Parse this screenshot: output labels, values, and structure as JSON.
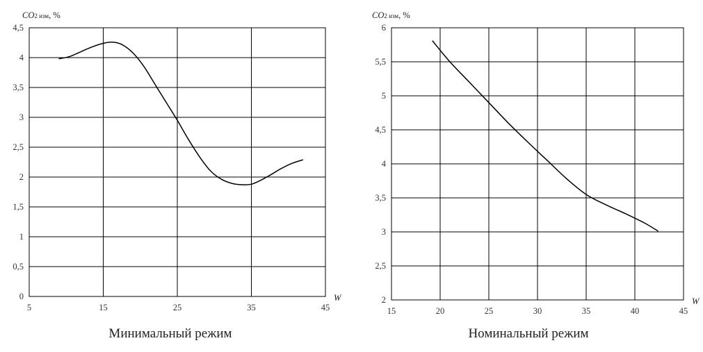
{
  "chart_data": [
    {
      "type": "line",
      "title": "Минимальный режим",
      "ylabel": {
        "main": "CO",
        "sub": "2 изм",
        "unit": ", %"
      },
      "xlabel": "W",
      "xlim": [
        5,
        45
      ],
      "ylim": [
        0,
        4.5
      ],
      "xticks": [
        "5",
        "15",
        "25",
        "35",
        "45"
      ],
      "yticks": [
        "0",
        "0,5",
        "1",
        "1,5",
        "2",
        "2,5",
        "3",
        "3,5",
        "4",
        "4,5"
      ],
      "series": [
        {
          "x": [
            9,
            10.5,
            12,
            13.5,
            15,
            16.2,
            17.5,
            19,
            20.5,
            22,
            23.5,
            25,
            26.5,
            28,
            29.5,
            31,
            32.5,
            34,
            35,
            36,
            37.5,
            39,
            40.5,
            42
          ],
          "values": [
            3.98,
            4.02,
            4.1,
            4.18,
            4.24,
            4.26,
            4.22,
            4.08,
            3.85,
            3.55,
            3.25,
            2.95,
            2.63,
            2.34,
            2.1,
            1.96,
            1.89,
            1.87,
            1.88,
            1.93,
            2.03,
            2.14,
            2.23,
            2.29
          ]
        }
      ]
    },
    {
      "type": "line",
      "title": "Номинальный режим",
      "ylabel": {
        "main": "CO",
        "sub": "2 изм",
        "unit": ", %"
      },
      "xlabel": "W",
      "xlim": [
        15,
        45
      ],
      "ylim": [
        2,
        6
      ],
      "xticks": [
        "15",
        "20",
        "25",
        "30",
        "35",
        "40",
        "45"
      ],
      "yticks": [
        "2",
        "2,5",
        "3",
        "3,5",
        "4",
        "4,5",
        "5",
        "5,5",
        "6"
      ],
      "series": [
        {
          "x": [
            19.2,
            21,
            23,
            25,
            27,
            29,
            31,
            33,
            35,
            37,
            39,
            41,
            42.4
          ],
          "values": [
            5.81,
            5.5,
            5.2,
            4.9,
            4.6,
            4.32,
            4.05,
            3.78,
            3.55,
            3.4,
            3.27,
            3.13,
            3.01
          ]
        }
      ]
    }
  ]
}
